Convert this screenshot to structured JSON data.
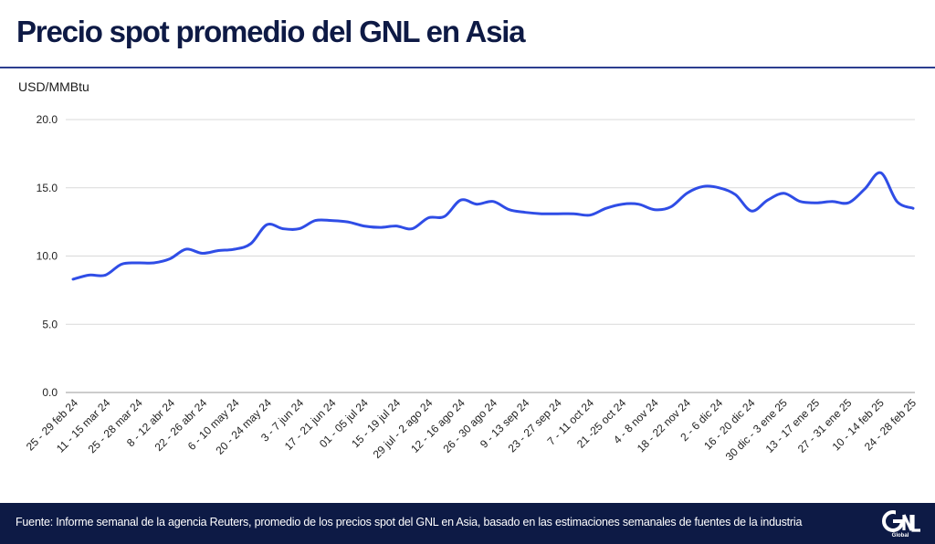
{
  "title": "Precio spot promedio del GNL en Asia",
  "unit_label": "USD/MMBtu",
  "footer": {
    "source": "Fuente: Informe semanal de la agencia Reuters, promedio de los precios spot del GNL en Asia, basado en las estimaciones semanales de fuentes de la industria",
    "logo": "GNL Global"
  },
  "colors": {
    "line": "#2f4de6",
    "title": "#0e1a45",
    "footer_bg": "#0d1a45",
    "rule": "#2c3e8f",
    "grid": "#d9d9d9"
  },
  "chart_data": {
    "type": "line",
    "title": "Precio spot promedio del GNL en Asia",
    "ylabel": "USD/MMBtu",
    "xlabel": "",
    "ylim": [
      0,
      20
    ],
    "y_ticks": [
      "0.0",
      "5.0",
      "10.0",
      "15.0",
      "20.0"
    ],
    "y_tick_values": [
      0,
      5,
      10,
      15,
      20
    ],
    "grid": "horizontal",
    "legend": "none",
    "x_tick_labels": [
      "25 - 29 feb 24",
      "11 - 15 mar 24",
      "25 - 28 mar 24",
      "8 - 12 abr 24",
      "22 - 26 abr 24",
      "6 - 10 may 24",
      "20 - 24 may 24",
      "3 - 7 jun 24",
      "17 - 21 jun 24",
      "01 - 05 jul 24",
      "15 - 19 jul 24",
      "29 jul - 2 ago 24",
      "12 - 16 ago 24",
      "26 - 30 ago 24",
      "9 - 13 sep 24",
      "23 - 27 sep 24",
      "7 - 11 oct 24",
      "21 -25 oct 24",
      "4 - 8 nov 24",
      "18 - 22 nov 24",
      "2 - 6 dic 24",
      "16 - 20 dic 24",
      "30 dic - 3 ene 25",
      "13 - 17 ene 25",
      "27 - 31 ene 25",
      "10 - 14 feb 25",
      "24 - 28 feb 25"
    ],
    "values": [
      8.3,
      8.6,
      8.6,
      9.4,
      9.5,
      9.5,
      9.8,
      10.5,
      10.2,
      10.4,
      10.5,
      10.9,
      12.3,
      12.0,
      12.0,
      12.6,
      12.6,
      12.5,
      12.2,
      12.1,
      12.2,
      12.0,
      12.8,
      12.9,
      14.1,
      13.8,
      14.0,
      13.4,
      13.2,
      13.1,
      13.1,
      13.1,
      13.0,
      13.5,
      13.8,
      13.8,
      13.4,
      13.6,
      14.6,
      15.1,
      15.0,
      14.5,
      13.3,
      14.1,
      14.6,
      14.0,
      13.9,
      14.0,
      13.9,
      14.9,
      16.1,
      14.0,
      13.5
    ]
  }
}
